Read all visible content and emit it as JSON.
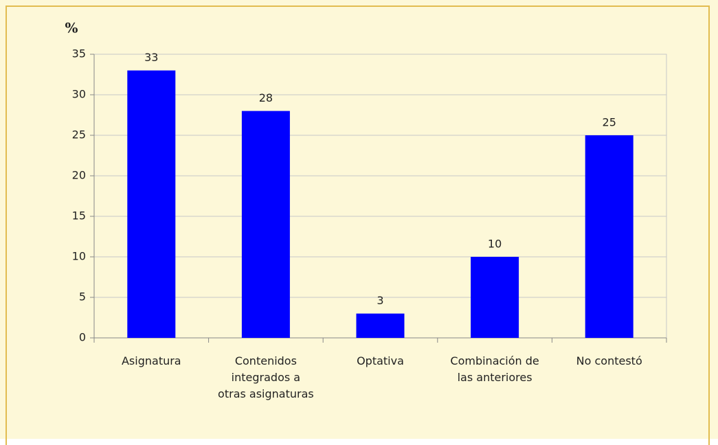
{
  "chart_data": {
    "type": "bar",
    "y_label": "%",
    "categories": [
      "Asignatura",
      "Contenidos integrados a otras asignaturas",
      "Optativa",
      "Combinación de las anteriores",
      "No contestó"
    ],
    "values": [
      33,
      28,
      3,
      10,
      25
    ],
    "color": "#0000ff",
    "ylim": [
      0,
      35
    ],
    "yticks": [
      0,
      5,
      10,
      15,
      20,
      25,
      30,
      35
    ],
    "grid": true
  }
}
